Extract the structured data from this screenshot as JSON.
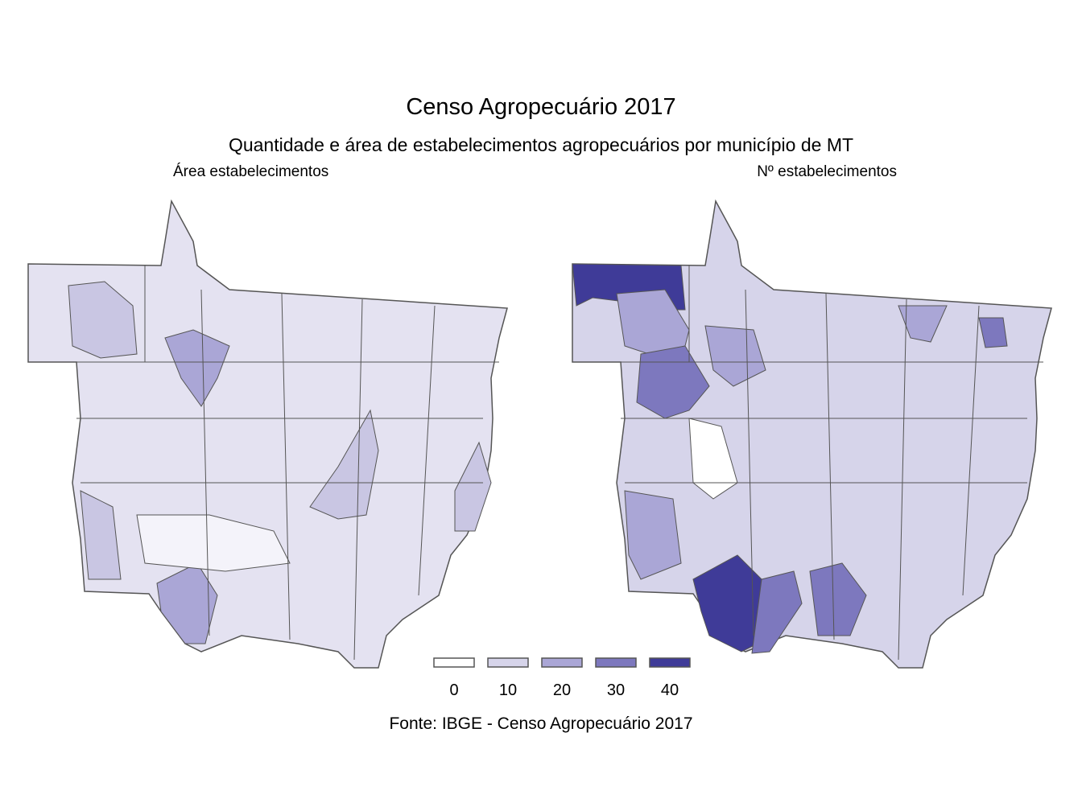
{
  "title": "Censo Agropecuário 2017",
  "subtitle": "Quantidade e área de estabelecimentos agropecuários por município de MT",
  "panels": [
    {
      "label": "Área estabelecimentos"
    },
    {
      "label": "Nº estabelecimentos"
    }
  ],
  "legend": {
    "values": [
      0,
      10,
      20,
      30,
      40
    ],
    "colors": [
      "#ffffff",
      "#d6d4ea",
      "#aaa6d6",
      "#7d78be",
      "#3f3b98"
    ]
  },
  "source": "Fonte: IBGE - Censo Agropecuário 2017"
}
